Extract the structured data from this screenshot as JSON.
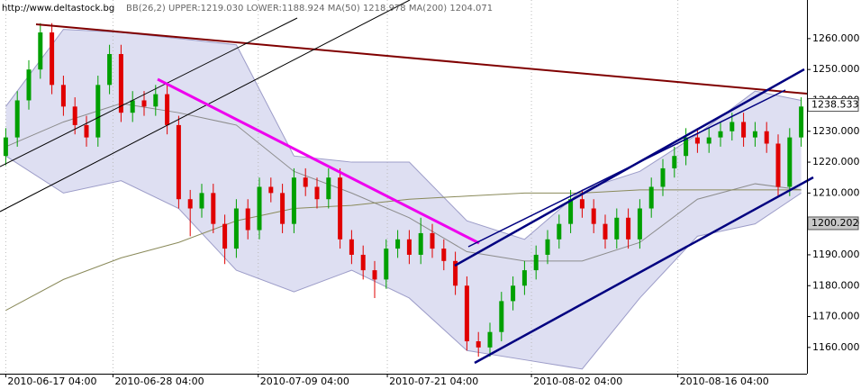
{
  "chart_data": {
    "type": "candlestick",
    "source": "http://www.deltastock.bg",
    "indicator_text": "BB(26,2) UPPER:1219.030 LOWER:1188.924 MA(50) 1218.978 MA(200) 1204.071",
    "x": [
      0,
      1,
      2,
      3,
      4,
      5,
      6,
      7,
      8,
      9,
      10,
      11,
      12,
      13,
      14,
      15,
      16,
      17,
      18,
      19,
      20,
      21,
      22,
      23,
      24,
      25,
      26,
      27,
      28,
      29,
      30,
      31,
      32,
      33,
      34,
      35,
      36,
      37,
      38,
      39,
      40,
      41,
      42,
      43,
      44,
      45,
      46,
      47,
      48,
      49,
      50,
      51,
      52,
      53,
      54,
      55,
      56,
      57,
      58,
      59,
      60,
      61,
      62,
      63,
      64,
      65,
      66,
      67,
      68,
      69
    ],
    "open": [
      1222,
      1228,
      1240,
      1250,
      1262,
      1245,
      1238,
      1232,
      1228,
      1245,
      1255,
      1236,
      1240,
      1238,
      1242,
      1232,
      1208,
      1205,
      1210,
      1200,
      1192,
      1205,
      1198,
      1212,
      1210,
      1200,
      1215,
      1212,
      1208,
      1215,
      1195,
      1190,
      1185,
      1182,
      1192,
      1195,
      1190,
      1197,
      1192,
      1188,
      1180,
      1162,
      1160,
      1165,
      1175,
      1180,
      1185,
      1190,
      1195,
      1200,
      1208,
      1205,
      1200,
      1195,
      1202,
      1195,
      1205,
      1212,
      1218,
      1222,
      1228,
      1226,
      1228,
      1230,
      1233,
      1228,
      1230,
      1226,
      1212,
      1228
    ],
    "high": [
      1231,
      1243,
      1253,
      1265,
      1265,
      1248,
      1241,
      1235,
      1248,
      1258,
      1258,
      1243,
      1243,
      1245,
      1245,
      1235,
      1211,
      1213,
      1213,
      1203,
      1208,
      1208,
      1215,
      1215,
      1213,
      1218,
      1218,
      1215,
      1218,
      1218,
      1198,
      1193,
      1188,
      1195,
      1198,
      1198,
      1202,
      1200,
      1195,
      1191,
      1183,
      1165,
      1168,
      1178,
      1183,
      1188,
      1193,
      1198,
      1203,
      1211,
      1211,
      1208,
      1203,
      1205,
      1205,
      1208,
      1215,
      1221,
      1225,
      1231,
      1231,
      1231,
      1233,
      1236,
      1236,
      1233,
      1233,
      1229,
      1231,
      1241
    ],
    "low": [
      1219,
      1225,
      1237,
      1247,
      1242,
      1235,
      1229,
      1225,
      1225,
      1242,
      1233,
      1233,
      1235,
      1235,
      1229,
      1205,
      1196,
      1202,
      1197,
      1187,
      1189,
      1195,
      1195,
      1207,
      1197,
      1197,
      1209,
      1205,
      1205,
      1192,
      1187,
      1182,
      1176,
      1179,
      1189,
      1187,
      1187,
      1189,
      1185,
      1177,
      1159,
      1157,
      1157,
      1162,
      1172,
      1177,
      1182,
      1187,
      1192,
      1197,
      1202,
      1197,
      1192,
      1192,
      1192,
      1192,
      1202,
      1209,
      1215,
      1219,
      1223,
      1223,
      1225,
      1227,
      1225,
      1225,
      1223,
      1209,
      1209,
      1225
    ],
    "close": [
      1228,
      1240,
      1250,
      1262,
      1245,
      1238,
      1232,
      1228,
      1245,
      1255,
      1236,
      1240,
      1238,
      1242,
      1232,
      1208,
      1205,
      1210,
      1200,
      1192,
      1205,
      1198,
      1212,
      1210,
      1200,
      1215,
      1212,
      1208,
      1215,
      1195,
      1190,
      1185,
      1182,
      1192,
      1195,
      1190,
      1197,
      1192,
      1188,
      1180,
      1162,
      1160,
      1165,
      1175,
      1180,
      1185,
      1190,
      1195,
      1200,
      1208,
      1205,
      1200,
      1195,
      1202,
      1195,
      1205,
      1212,
      1218,
      1222,
      1228,
      1226,
      1228,
      1230,
      1233,
      1228,
      1230,
      1226,
      1212,
      1228,
      1238
    ],
    "up_color": "#00a000",
    "down_color": "#e00000",
    "overlay_x": [
      0,
      5,
      10,
      15,
      20,
      25,
      30,
      35,
      40,
      45,
      50,
      55,
      60,
      65,
      69
    ],
    "bb_upper": [
      1238,
      1263,
      1262,
      1260,
      1258,
      1222,
      1220,
      1220,
      1201,
      1195,
      1211,
      1217,
      1229,
      1243,
      1240
    ],
    "bb_lower": [
      1222,
      1210,
      1214,
      1205,
      1185,
      1178,
      1185,
      1176,
      1159,
      1156,
      1153,
      1176,
      1196,
      1200,
      1210
    ],
    "ma50": [
      1225,
      1233,
      1239,
      1236,
      1232,
      1217,
      1210,
      1202,
      1191,
      1188,
      1188,
      1194,
      1208,
      1213,
      1211
    ],
    "ma200": [
      1172,
      1182,
      1189,
      1194,
      1201,
      1205,
      1206,
      1208,
      1209,
      1210,
      1210,
      1211,
      1211,
      1211,
      1211
    ],
    "band_color": "#dedff2",
    "band_line_color": "#9c9cc8",
    "ma50_color": "#8c8c8c",
    "ma200_color": "#8a8a5a",
    "xlim": [
      -0.5,
      69.5
    ],
    "xticks": [
      {
        "value": 0,
        "label": "2010-06-17 04:00"
      },
      {
        "value": 9.3,
        "label": "2010-06-28 04:00"
      },
      {
        "value": 21.9,
        "label": "2010-07-09 04:00"
      },
      {
        "value": 33.1,
        "label": "2010-07-21 04:00"
      },
      {
        "value": 45.6,
        "label": "2010-08-02 04:00"
      },
      {
        "value": 58.3,
        "label": "2010-08-16 04:00"
      }
    ],
    "ylim": [
      1151.5,
      1272.5
    ],
    "yticks": [
      {
        "value": 1160,
        "label": "1160.000"
      },
      {
        "value": 1170,
        "label": "1170.000"
      },
      {
        "value": 1180,
        "label": "1180.000"
      },
      {
        "value": 1190,
        "label": "1190.000"
      },
      {
        "value": 1200,
        "label": "1200.000"
      },
      {
        "value": 1210,
        "label": "1210.000"
      },
      {
        "value": 1220,
        "label": "1220.000"
      },
      {
        "value": 1230,
        "label": "1230.000"
      },
      {
        "value": 1240,
        "label": "1240.000"
      },
      {
        "value": 1250,
        "label": "1250.000"
      },
      {
        "value": 1260,
        "label": "1260.000"
      }
    ],
    "price_tags": [
      1238.533,
      1200.202
    ],
    "grid": true
  }
}
